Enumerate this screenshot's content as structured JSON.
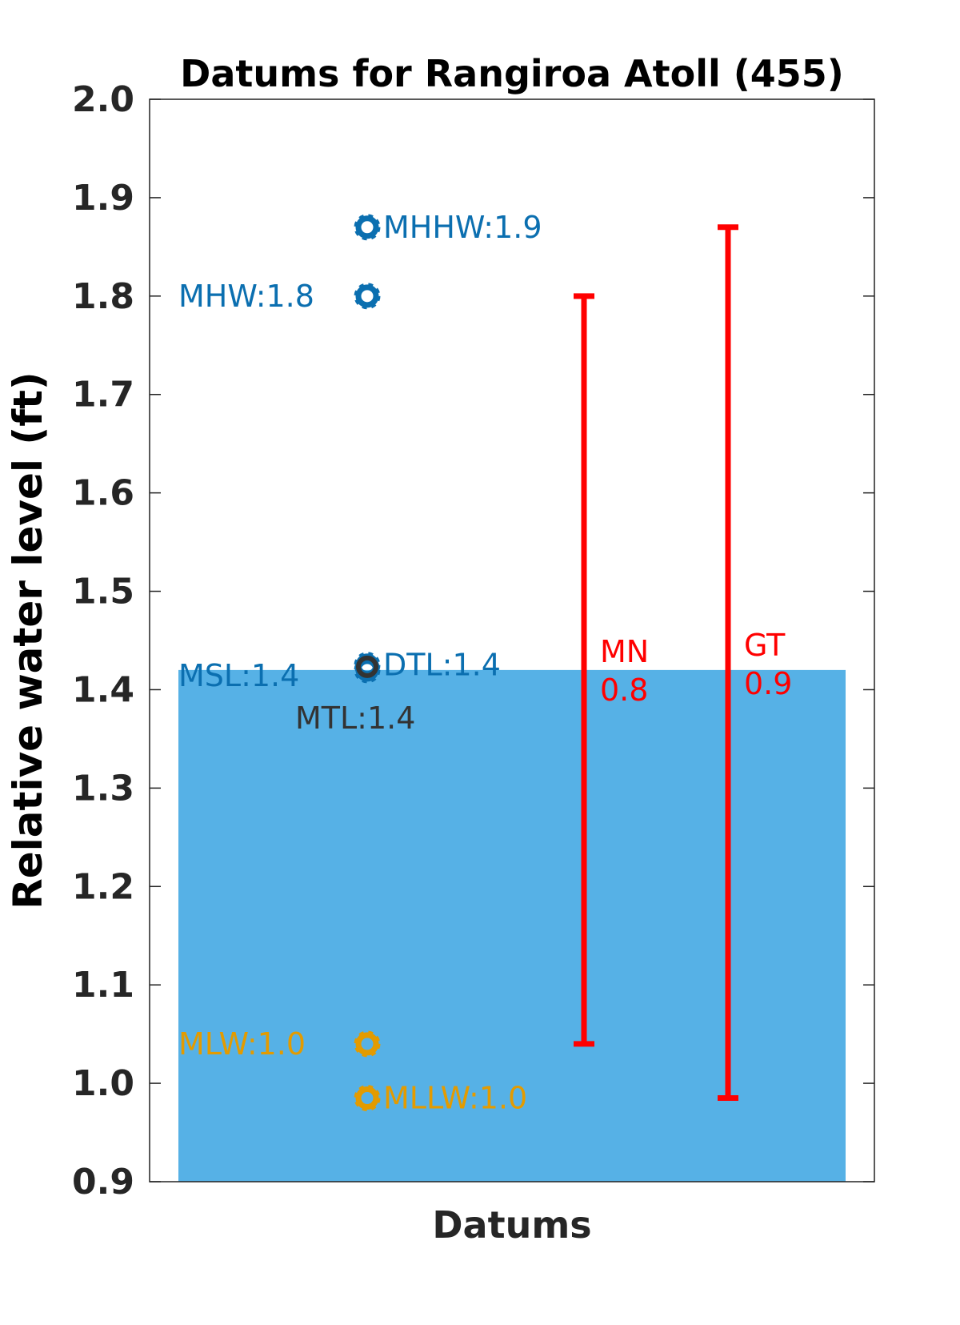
{
  "chart_data": {
    "type": "bar",
    "title": "Datums for Rangiroa Atoll  (455)",
    "xlabel": "Datums",
    "ylabel": "Relative water level (ft)",
    "ylim": [
      0.9,
      2.0
    ],
    "yticks": [
      "0.9",
      "1.0",
      "1.1",
      "1.2",
      "1.3",
      "1.4",
      "1.5",
      "1.6",
      "1.7",
      "1.8",
      "1.9",
      "2.0"
    ],
    "grid": false,
    "bar": {
      "value": 1.42,
      "color": "#56B1E6"
    },
    "datums": [
      {
        "label": "MHHW:1.9",
        "value": 1.87,
        "color": "#0B6FB0",
        "label_side": "right"
      },
      {
        "label": "MHW:1.8",
        "value": 1.8,
        "color": "#0B6FB0",
        "label_side": "left"
      },
      {
        "label": "DTL:1.4",
        "value": 1.425,
        "color": "#0B6FB0",
        "label_side": "right"
      },
      {
        "label": "MSL:1.4",
        "value": 1.42,
        "color": "#0B6FB0",
        "label_side": "left"
      },
      {
        "label": "MTL:1.4",
        "value": 1.42,
        "color": "#333333",
        "label_side": "below"
      },
      {
        "label": "MLW:1.0",
        "value": 1.04,
        "color": "#E39B00",
        "label_side": "left"
      },
      {
        "label": "MLLW:1.0",
        "value": 0.985,
        "color": "#E39B00",
        "label_side": "right"
      }
    ],
    "ranges": [
      {
        "name": "MN",
        "value_text": "0.8",
        "low": 1.04,
        "high": 1.8,
        "color": "#FF0000"
      },
      {
        "name": "GT",
        "value_text": "0.9",
        "low": 0.985,
        "high": 1.87,
        "color": "#FF0000"
      }
    ]
  }
}
